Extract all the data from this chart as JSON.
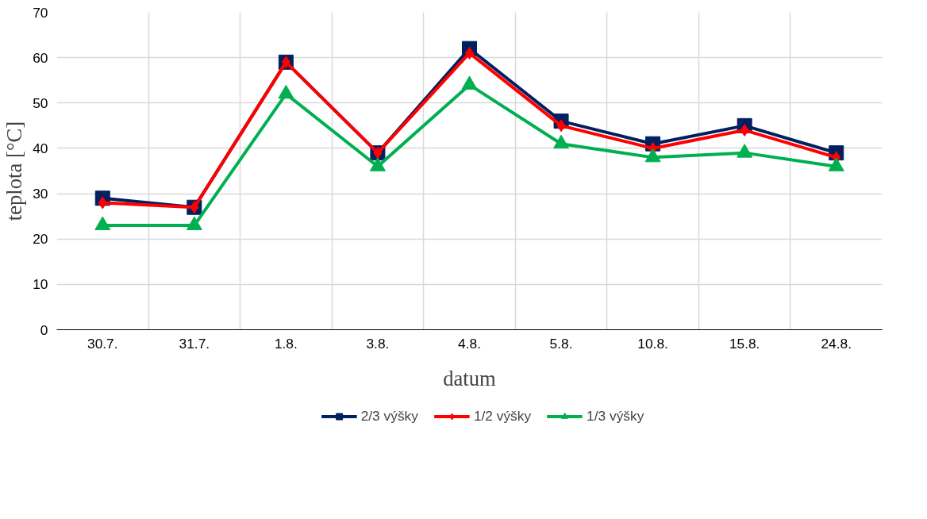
{
  "chart_data": {
    "type": "line",
    "xlabel": "datum",
    "ylabel": "teplota [°C]",
    "categories": [
      "30.7.",
      "31.7.",
      "1.8.",
      "3.8.",
      "4.8.",
      "5.8.",
      "10.8.",
      "15.8.",
      "24.8."
    ],
    "series": [
      {
        "name": "2/3 výšky",
        "color": "#002060",
        "marker": "square",
        "values": [
          29,
          27,
          59,
          39,
          62,
          46,
          41,
          45,
          39
        ]
      },
      {
        "name": "1/2 výšky",
        "color": "#ff0000",
        "marker": "diamond",
        "values": [
          28,
          27,
          59,
          39,
          61,
          45,
          40,
          44,
          38
        ]
      },
      {
        "name": "1/3 výšky",
        "color": "#00b050",
        "marker": "triangle",
        "values": [
          23,
          23,
          52,
          36,
          54,
          41,
          38,
          39,
          36
        ]
      }
    ],
    "ylim": [
      0,
      70
    ],
    "yticks": [
      0,
      10,
      20,
      30,
      40,
      50,
      60,
      70
    ],
    "grid": true,
    "legend": "bottom",
    "line_style": "solid"
  }
}
